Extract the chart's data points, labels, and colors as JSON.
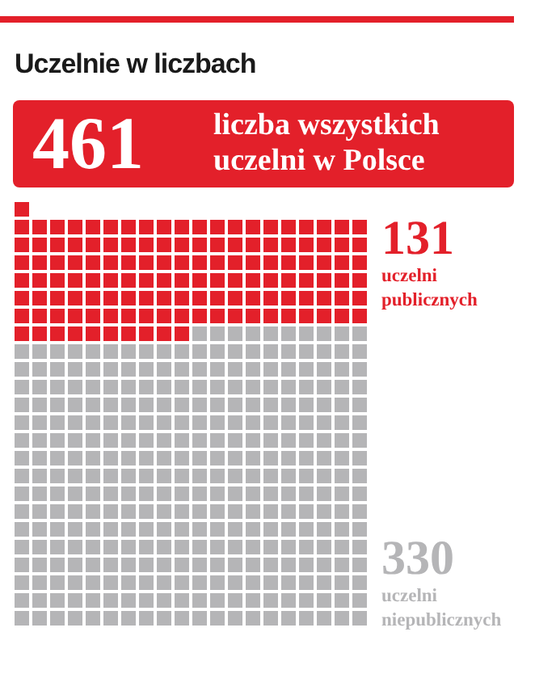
{
  "chart_data": {
    "type": "other",
    "title": "Uczelnie w liczbach",
    "annotations": [
      "461",
      "liczba wszystkich uczelni w Polsce"
    ],
    "categories": [
      "uczelni publicznych",
      "uczelni niepublicznych"
    ],
    "values": [
      131,
      330
    ],
    "colors": [
      "#e3202a",
      "#b5b5b7"
    ],
    "data_labels": true
  }
}
